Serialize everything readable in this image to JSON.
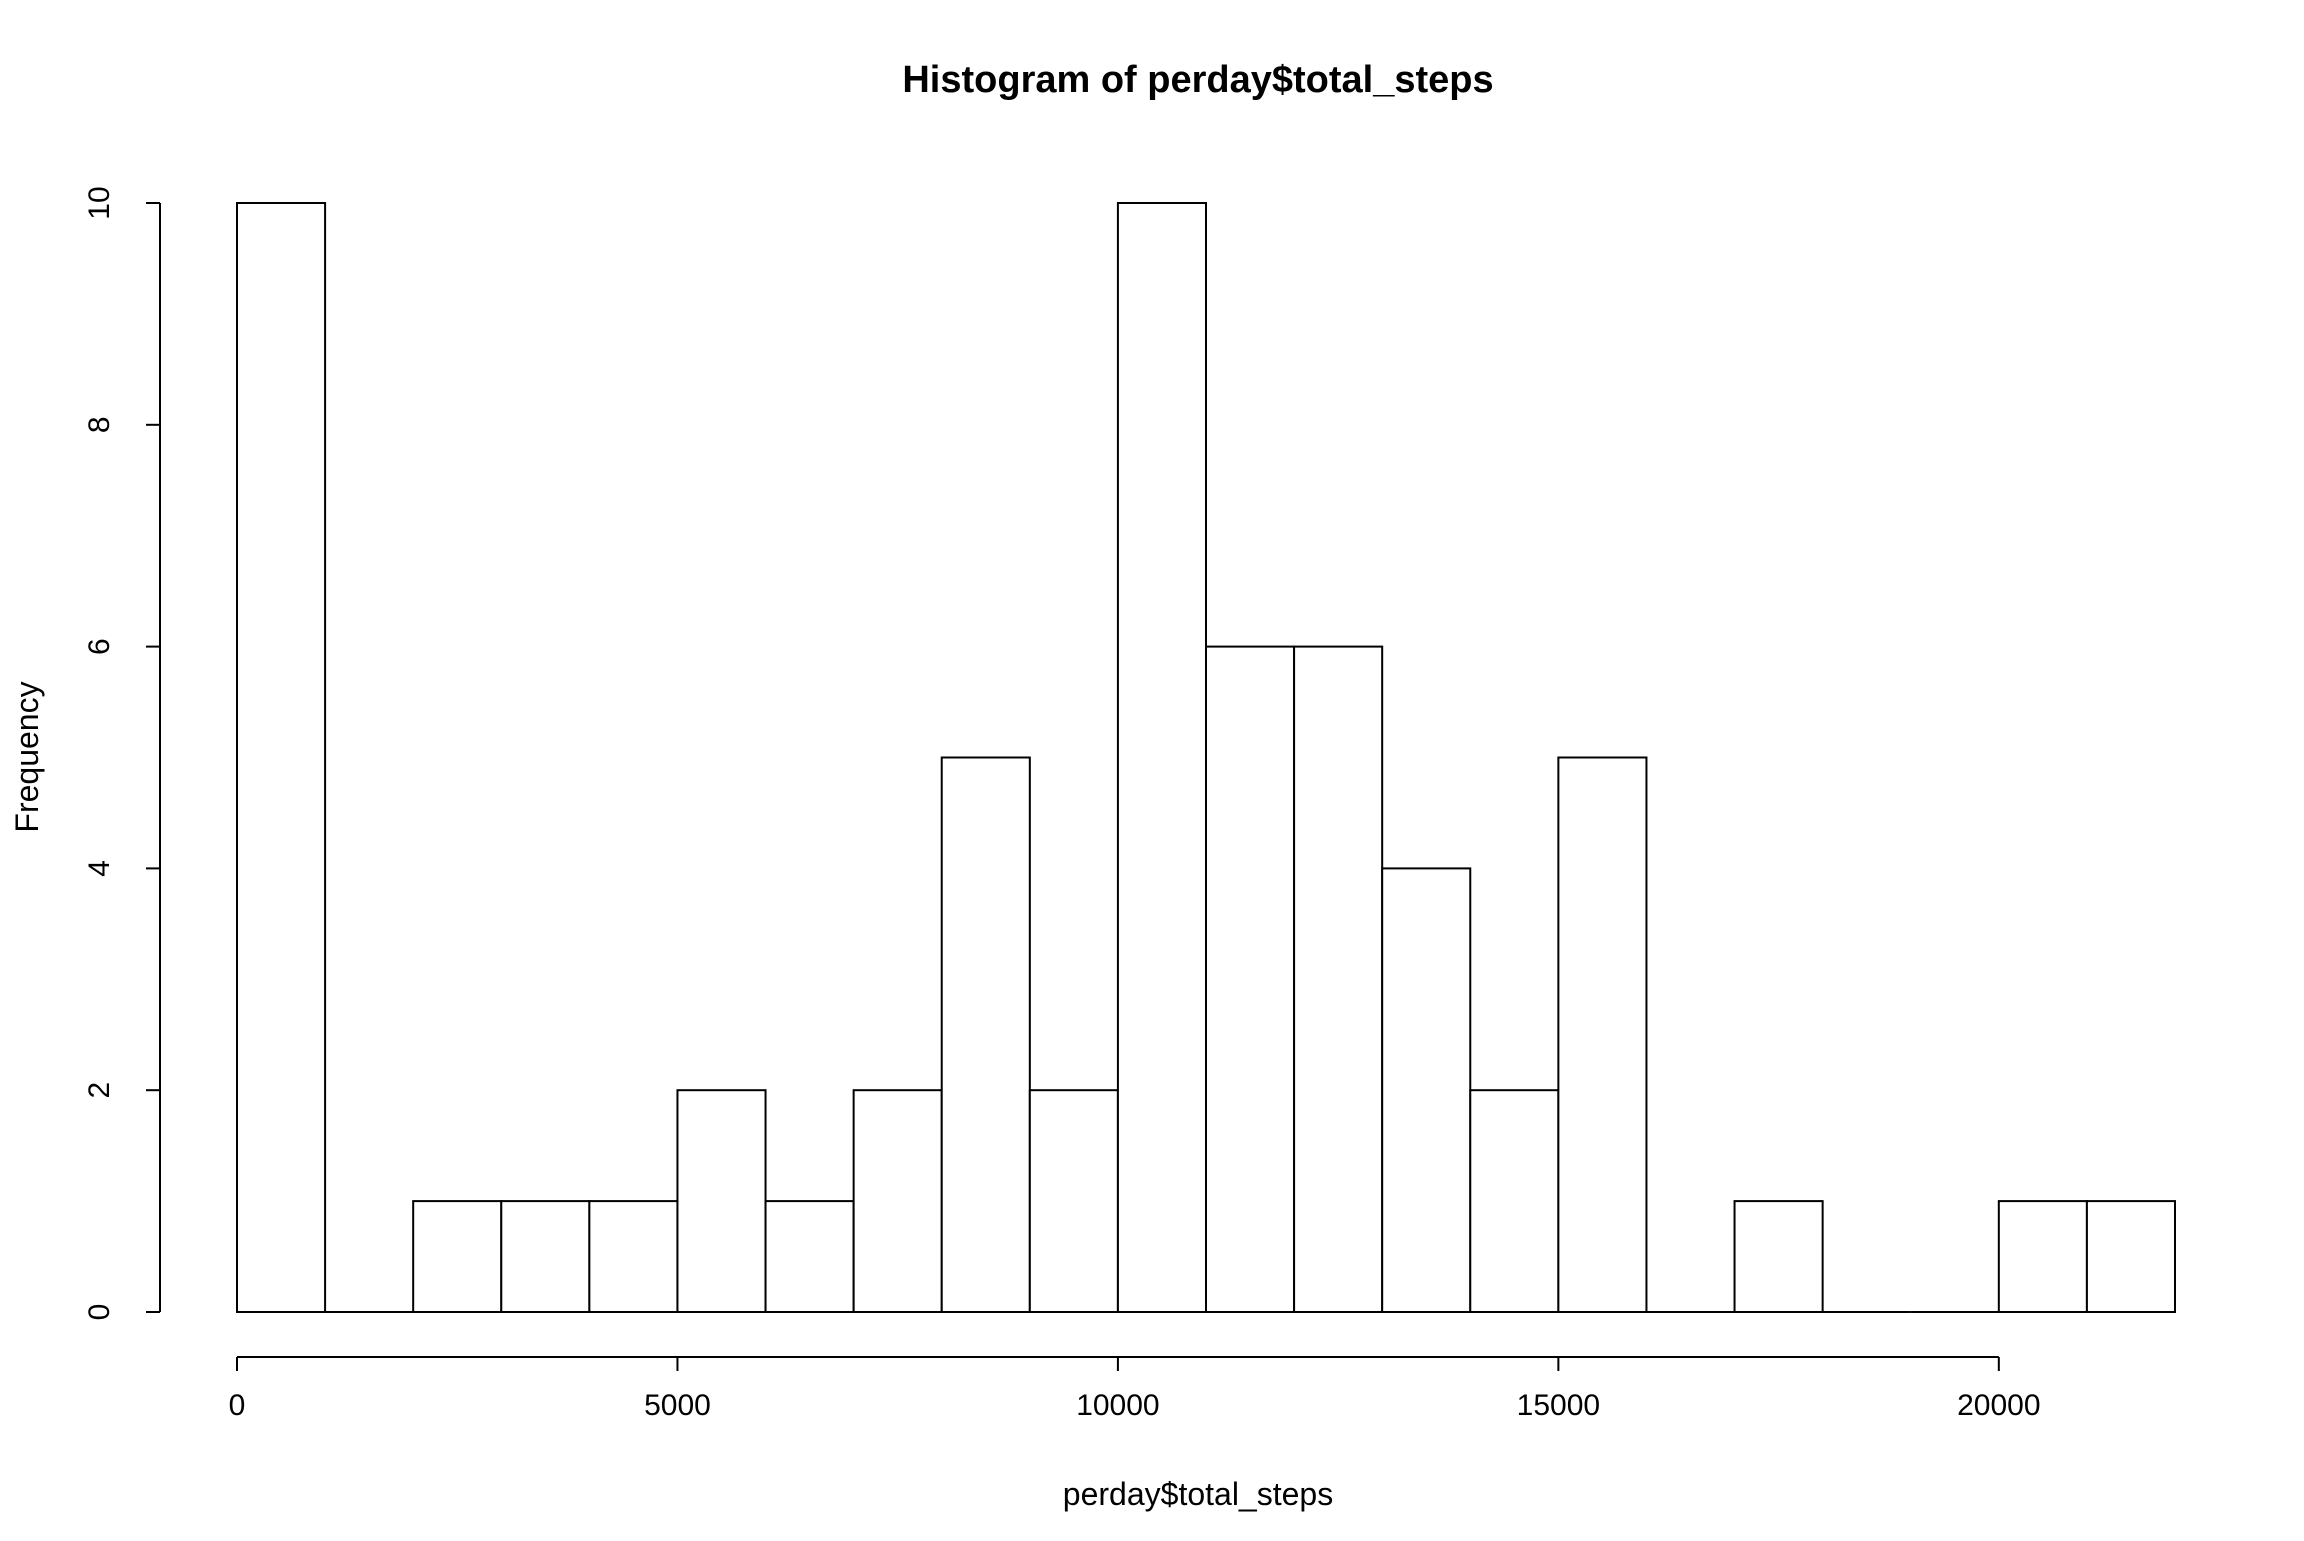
{
  "chart_data": {
    "type": "histogram",
    "title": "Histogram of perday$total_steps",
    "xlabel": "perday$total_steps",
    "ylabel": "Frequency",
    "xlim": [
      0,
      22000
    ],
    "ylim": [
      0,
      10
    ],
    "x_ticks": [
      0,
      5000,
      10000,
      15000,
      20000
    ],
    "y_ticks": [
      0,
      2,
      4,
      6,
      8,
      10
    ],
    "bin_width": 1000,
    "bins": [
      {
        "start": 0,
        "end": 1000,
        "count": 10
      },
      {
        "start": 1000,
        "end": 2000,
        "count": 0
      },
      {
        "start": 2000,
        "end": 3000,
        "count": 1
      },
      {
        "start": 3000,
        "end": 4000,
        "count": 1
      },
      {
        "start": 4000,
        "end": 5000,
        "count": 1
      },
      {
        "start": 5000,
        "end": 6000,
        "count": 2
      },
      {
        "start": 6000,
        "end": 7000,
        "count": 1
      },
      {
        "start": 7000,
        "end": 8000,
        "count": 2
      },
      {
        "start": 8000,
        "end": 9000,
        "count": 5
      },
      {
        "start": 9000,
        "end": 10000,
        "count": 2
      },
      {
        "start": 10000,
        "end": 11000,
        "count": 10
      },
      {
        "start": 11000,
        "end": 12000,
        "count": 6
      },
      {
        "start": 12000,
        "end": 13000,
        "count": 6
      },
      {
        "start": 13000,
        "end": 14000,
        "count": 4
      },
      {
        "start": 14000,
        "end": 15000,
        "count": 2
      },
      {
        "start": 15000,
        "end": 16000,
        "count": 5
      },
      {
        "start": 16000,
        "end": 17000,
        "count": 0
      },
      {
        "start": 17000,
        "end": 18000,
        "count": 1
      },
      {
        "start": 18000,
        "end": 19000,
        "count": 0
      },
      {
        "start": 19000,
        "end": 20000,
        "count": 0
      },
      {
        "start": 20000,
        "end": 21000,
        "count": 1
      },
      {
        "start": 21000,
        "end": 22000,
        "count": 1
      }
    ],
    "fill_color": "#ffffff",
    "stroke_color": "#000000",
    "grid": false,
    "legend": false
  }
}
